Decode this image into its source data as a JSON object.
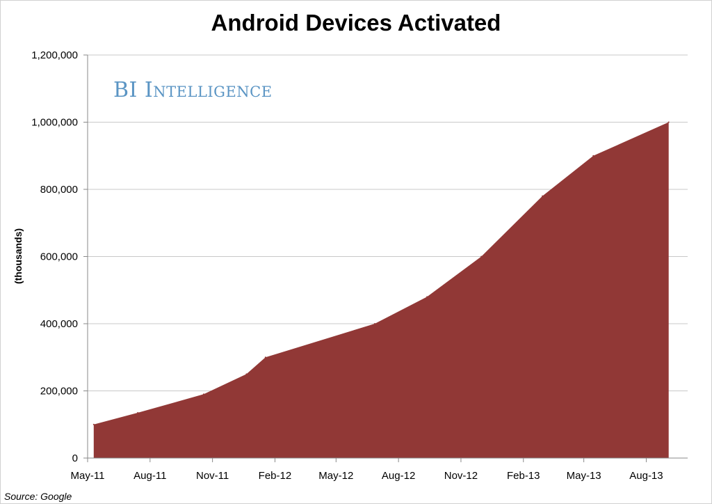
{
  "chart_data": {
    "type": "area",
    "title": "Android Devices Activated",
    "ylabel": "(thousands)",
    "xlabel": "",
    "ylim": [
      0,
      1200000
    ],
    "yticks": [
      "0",
      "200,000",
      "400,000",
      "600,000",
      "800,000",
      "1,000,000",
      "1,200,000"
    ],
    "ytick_values": [
      0,
      200000,
      400000,
      600000,
      800000,
      1000000,
      1200000
    ],
    "xticks": [
      "May-11",
      "Aug-11",
      "Nov-11",
      "Feb-12",
      "May-12",
      "Aug-12",
      "Nov-12",
      "Feb-13",
      "May-13",
      "Aug-13"
    ],
    "x": [
      "2011-05-10",
      "2011-07-14",
      "2011-10-19",
      "2011-12-21",
      "2012-01-18",
      "2012-06-27",
      "2012-09-12",
      "2012-12-01",
      "2013-03-01",
      "2013-05-15",
      "2013-09-03"
    ],
    "series": [
      {
        "values": [
          100000,
          135000,
          190000,
          250000,
          300000,
          400000,
          480000,
          600000,
          780000,
          900000,
          1000000
        ]
      }
    ],
    "fill_color": "#913836",
    "grid": true
  },
  "brand": "BI Intelligence",
  "source": "Source: Google"
}
